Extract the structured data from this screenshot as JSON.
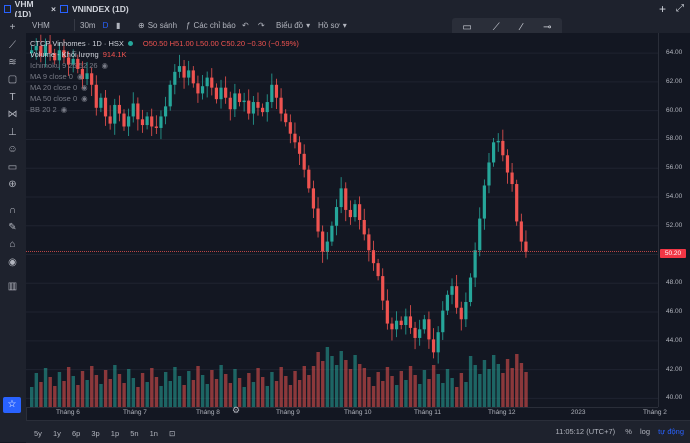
{
  "tabs": [
    {
      "label": "VHM (1D)",
      "close": "×"
    },
    {
      "label": "VNINDEX (1D)"
    }
  ],
  "window_controls": {
    "add": "+",
    "maximize": "⤢"
  },
  "toolbar": {
    "symbol": "VHM",
    "interval": "30m",
    "interval2": "D",
    "compare": "So sánh",
    "indicators": "Các chỉ báo",
    "chart_type": "Biểu đồ",
    "templates": "Hồ sơ"
  },
  "legend": {
    "title": "CTCP Vinhomes · 1D · HSX",
    "ohlc": "O50.50 H51.00 L50.00 C50.20 −0.30 (−0.59%)",
    "volume": "Volume - Khối lượng",
    "volume_value": "914.1K",
    "indicators": [
      "Ichimoku 9 26 52 26",
      "MA 9 close 0",
      "MA 20 close 0",
      "MA 50 close 0",
      "BB 20 2"
    ]
  },
  "price_tag": "50.20",
  "y_labels": [
    "64.00",
    "62.00",
    "60.00",
    "58.00",
    "56.00",
    "54.00",
    "52.00",
    "50.00",
    "48.00",
    "46.00",
    "44.00",
    "42.00",
    "40.00"
  ],
  "x_labels": [
    "Tháng 6",
    "Tháng 7",
    "Tháng 8",
    "Tháng 9",
    "Tháng 10",
    "Tháng 11",
    "Tháng 12",
    "2023",
    "Tháng 2"
  ],
  "bottom": {
    "ranges": [
      "5y",
      "1y",
      "6p",
      "3p",
      "1p",
      "5n",
      "1n"
    ],
    "time": "11:05:12 (UTC+7)",
    "pct": "%",
    "log": "log",
    "auto": "tự động"
  },
  "colors": {
    "up": "#26a69a",
    "down": "#ef5350",
    "accent": "#2962ff"
  },
  "chart_data": {
    "type": "candlestick",
    "ylim": [
      39.4,
      65.4
    ],
    "closes": [
      64.2,
      64.5,
      63.8,
      64.6,
      64.0,
      63.5,
      64.2,
      63.7,
      63.2,
      63.6,
      62.9,
      62.2,
      62.6,
      61.8,
      60.2,
      60.9,
      59.6,
      59.1,
      60.4,
      59.8,
      58.9,
      59.6,
      60.5,
      59.4,
      59.0,
      59.6,
      58.9,
      58.8,
      59.6,
      60.3,
      61.8,
      62.7,
      63.1,
      62.3,
      62.8,
      61.9,
      61.2,
      61.7,
      62.3,
      61.6,
      60.8,
      61.6,
      60.9,
      60.1,
      61.2,
      60.6,
      60.7,
      59.8,
      60.6,
      60.2,
      59.9,
      60.6,
      61.8,
      60.9,
      59.8,
      59.2,
      58.4,
      57.8,
      57.0,
      55.9,
      54.6,
      53.2,
      51.6,
      50.2,
      50.9,
      52.0,
      53.3,
      54.6,
      53.1,
      52.6,
      53.5,
      52.4,
      51.4,
      50.3,
      49.4,
      48.5,
      46.8,
      45.2,
      44.8,
      45.4,
      45.1,
      45.7,
      44.9,
      44.2,
      44.8,
      45.5,
      44.1,
      43.2,
      44.6,
      46.1,
      47.2,
      47.8,
      46.3,
      45.5,
      46.7,
      48.4,
      50.3,
      52.5,
      54.8,
      56.4,
      57.8,
      57.9,
      56.9,
      55.7,
      54.9,
      52.3,
      50.9,
      50.2
    ]
  }
}
